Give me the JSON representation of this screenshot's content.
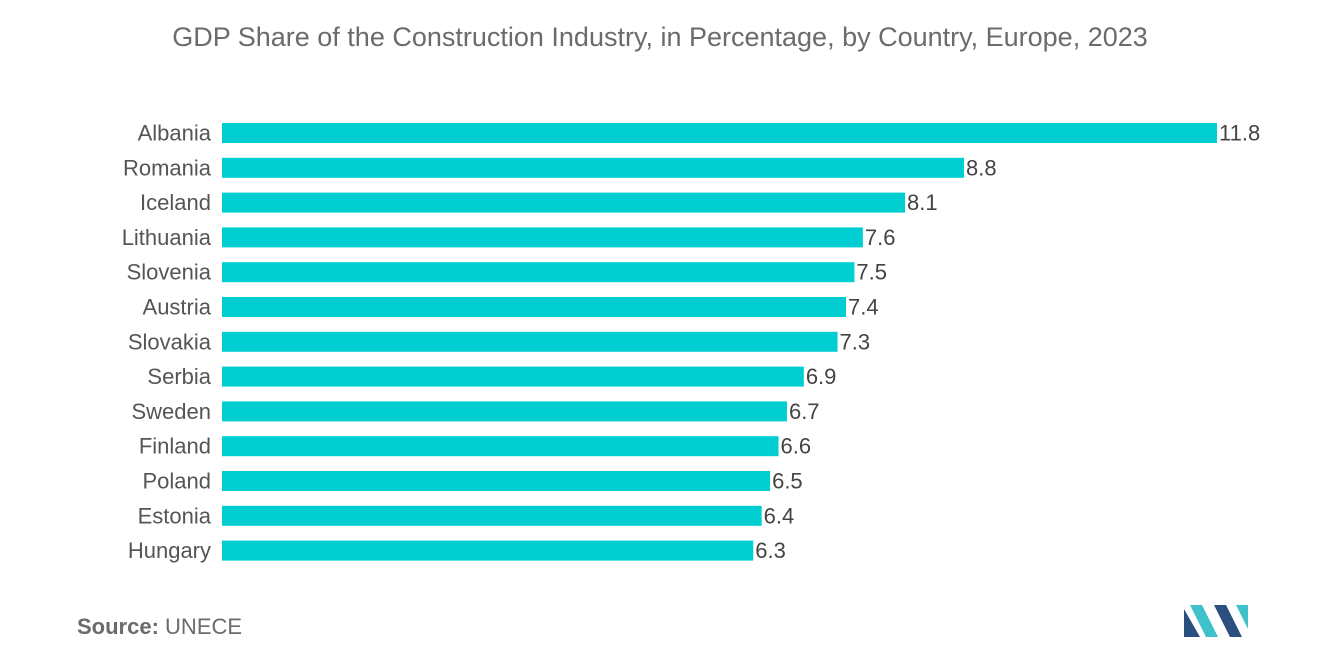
{
  "colors": {
    "bar": "#00CED1",
    "text": "#555555",
    "logo_dark": "#2b4f7e",
    "logo_teal": "#3ec1c9"
  },
  "chart_data": {
    "type": "bar",
    "orientation": "horizontal",
    "title": "GDP Share of the Construction Industry, in Percentage, by Country, Europe, 2023",
    "categories": [
      "Albania",
      "Romania",
      "Iceland",
      "Lithuania",
      "Slovenia",
      "Austria",
      "Slovakia",
      "Serbia",
      "Sweden",
      "Finland",
      "Poland",
      "Estonia",
      "Hungary"
    ],
    "values": [
      11.8,
      8.8,
      8.1,
      7.6,
      7.5,
      7.4,
      7.3,
      6.9,
      6.7,
      6.6,
      6.5,
      6.4,
      6.3
    ],
    "xlabel": "",
    "ylabel": "",
    "xlim": [
      0,
      11.8
    ],
    "grid": false
  },
  "source": {
    "label": "Source:",
    "value": "UNECE"
  },
  "logo": {
    "icon": "mordor-intelligence-logo-icon"
  }
}
